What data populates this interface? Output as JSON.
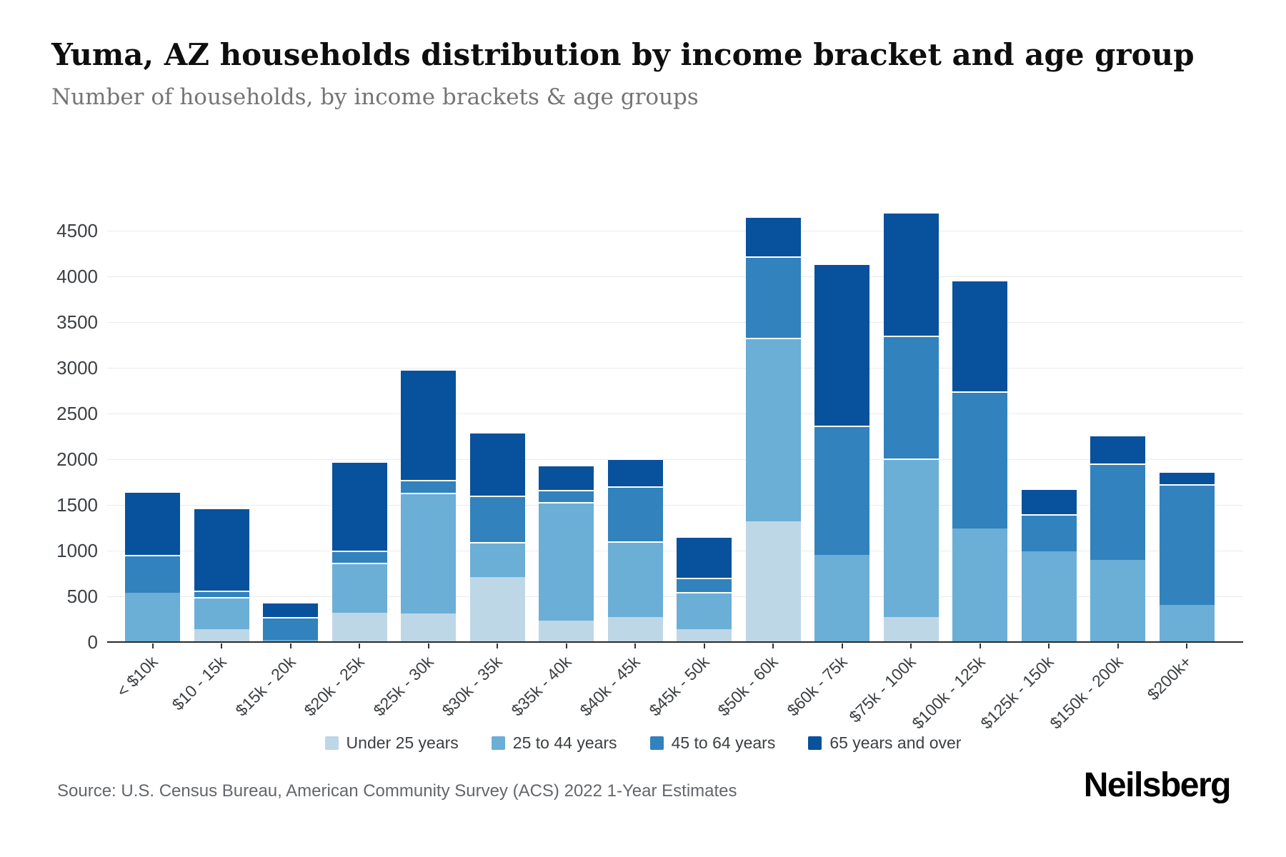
{
  "header": {
    "title": "Yuma, AZ households distribution by income bracket and age group",
    "subtitle": "Number of households, by income brackets & age groups"
  },
  "chart_data": {
    "type": "bar",
    "stacked": true,
    "title": "Yuma, AZ households distribution by income bracket and age group",
    "xlabel": "",
    "ylabel": "Number of households",
    "ylim": [
      0,
      4500
    ],
    "y_ticks": [
      0,
      500,
      1000,
      1500,
      2000,
      2500,
      3000,
      3500,
      4000,
      4500
    ],
    "grid": "horizontal",
    "legend_position": "bottom",
    "categories": [
      "< $10k",
      "$10 - 15k",
      "$15k - 20k",
      "$20k - 25k",
      "$25k - 30k",
      "$30k - 35k",
      "$35k - 40k",
      "$40k - 45k",
      "$45k - 50k",
      "$50k - 60k",
      "$60k - 75k",
      "$75k - 100k",
      "$100k - 125k",
      "$125k - 150k",
      "$150k - 200k",
      "$200k+"
    ],
    "series": [
      {
        "name": "Under 25 years",
        "color": "#bdd7e7",
        "values": [
          0,
          140,
          0,
          320,
          315,
          710,
          235,
          270,
          140,
          1320,
          0,
          270,
          0,
          0,
          0,
          0
        ]
      },
      {
        "name": "25 to 44 years",
        "color": "#6baed6",
        "values": [
          540,
          350,
          20,
          545,
          1315,
          380,
          1300,
          835,
          405,
          2005,
          950,
          1740,
          1240,
          990,
          900,
          410
        ]
      },
      {
        "name": "45 to 64 years",
        "color": "#3182bd",
        "values": [
          410,
          70,
          250,
          135,
          145,
          510,
          130,
          595,
          155,
          895,
          1420,
          1340,
          1500,
          410,
          1055,
          1320
        ]
      },
      {
        "name": "65 years and over",
        "color": "#08519c",
        "values": [
          700,
          910,
          170,
          980,
          1210,
          700,
          270,
          310,
          460,
          440,
          1770,
          1350,
          1220,
          280,
          310,
          135
        ]
      }
    ]
  },
  "footer": {
    "source": "Source: U.S. Census Bureau, American Community Survey (ACS) 2022 1-Year Estimates",
    "brand": "Neilsberg"
  }
}
